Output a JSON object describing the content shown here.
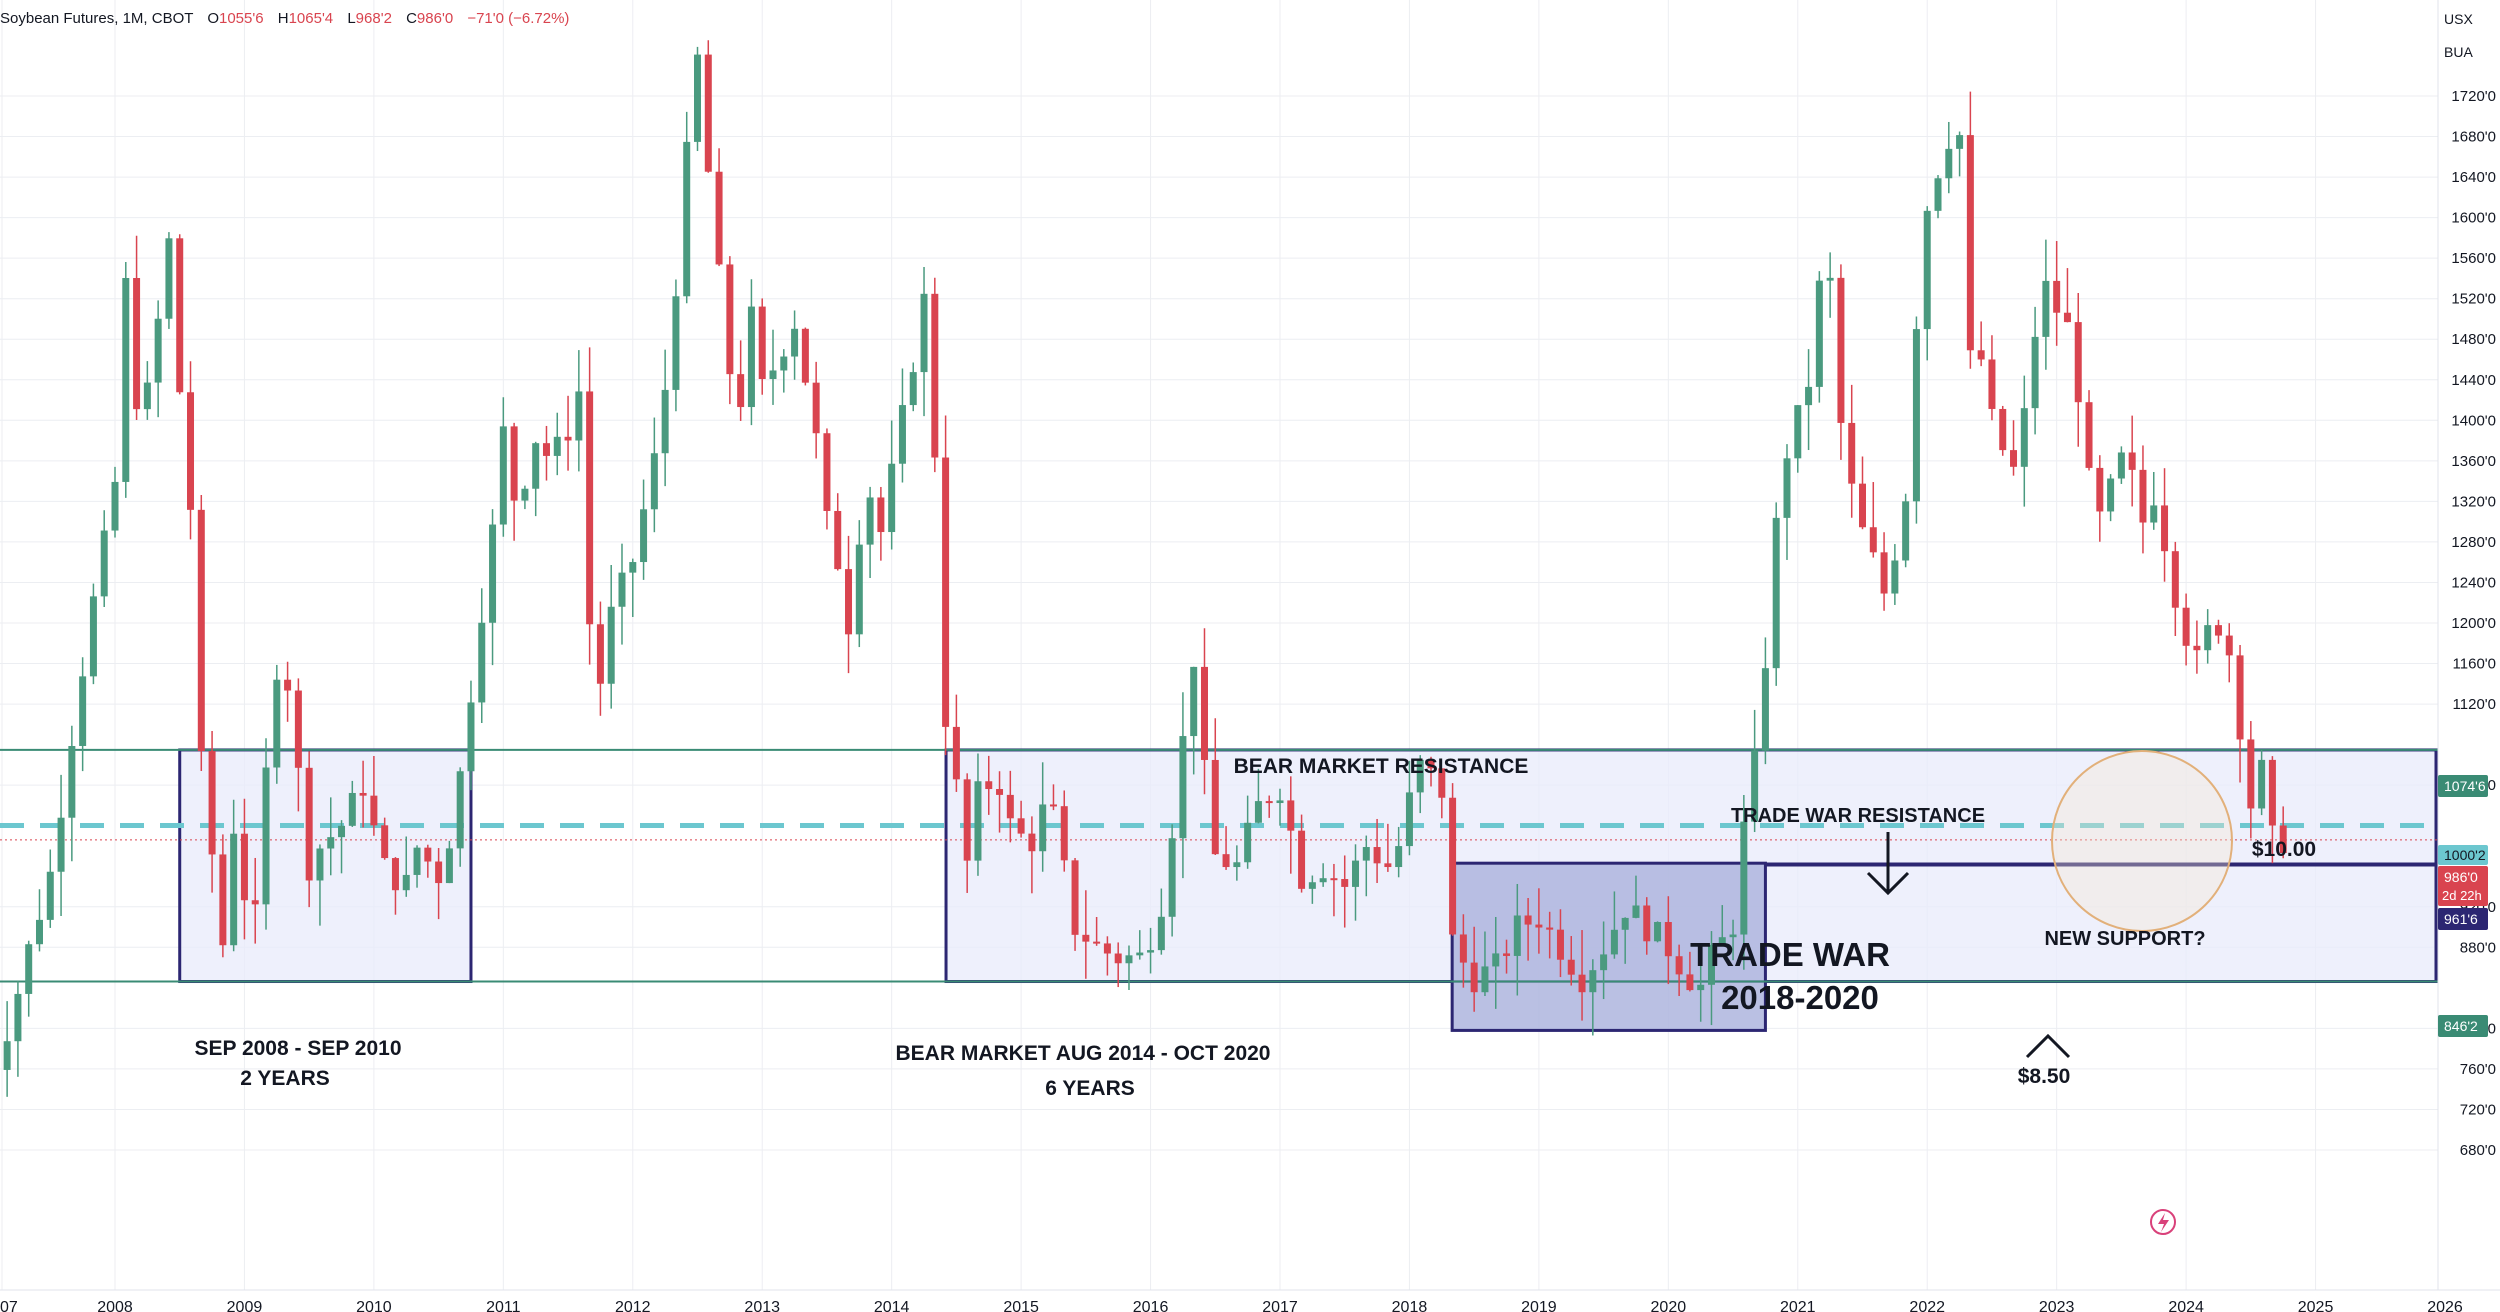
{
  "header": {
    "symbol": "Soybean Futures, 1M, CBOT",
    "o_label": "O",
    "o_value": "1055'6",
    "h_label": "H",
    "h_value": "1065'4",
    "l_label": "L",
    "l_value": "968'2",
    "c_label": "C",
    "c_value": "986'0",
    "change": "−71'0 (−6.72%)"
  },
  "scale": {
    "currency": "USX",
    "unit": "BUA"
  },
  "colors": {
    "up": "#4a9a7f",
    "down": "#d9444f",
    "grid": "#eceef2",
    "box_border": "#2c2672",
    "box_fill": "#e8ebfb",
    "box_fill_dark": "#aeb5de",
    "support_line": "#3a8b74",
    "dashed": "#6cc7cf",
    "circle": "#e2b07a",
    "price_label_green": "#3a8b74",
    "price_label_cyan": "#6cc7cf",
    "price_label_red": "#d9444f",
    "price_label_navy": "#2c2672"
  },
  "x_ticks": [
    "07",
    "2008",
    "2009",
    "2010",
    "2011",
    "2012",
    "2013",
    "2014",
    "2015",
    "2016",
    "2017",
    "2018",
    "2019",
    "2020",
    "2021",
    "2022",
    "2023",
    "2024",
    "2025",
    "2026"
  ],
  "y_ticks": [
    "1720'0",
    "1680'0",
    "1640'0",
    "1600'0",
    "1560'0",
    "1520'0",
    "1480'0",
    "1440'0",
    "1400'0",
    "1360'0",
    "1320'0",
    "1280'0",
    "1240'0",
    "1200'0",
    "1160'0",
    "1120'0",
    "1040'0",
    "920'0",
    "880'0",
    "800'0",
    "760'0",
    "720'0",
    "680'0"
  ],
  "price_labels": {
    "resistance": "1074'6",
    "ten": "1000'2",
    "last": "986'0",
    "countdown": "2d 22h",
    "support": "961'6",
    "bottom": "846'2"
  },
  "annotations": {
    "bear_resistance": "BEAR MARKET RESISTANCE",
    "sep2008": "SEP 2008 - SEP 2010",
    "two_years": "2 YEARS",
    "bear_market": "BEAR MARKET AUG 2014 - OCT 2020",
    "six_years": "6 YEARS",
    "trade_war_resistance": "TRADE WAR RESISTANCE",
    "trade_war": "TRADE WAR",
    "trade_war_years": "2018-2020",
    "ten_dollars": "$10.00",
    "new_support": "NEW SUPPORT?",
    "eight_fifty": "$8.50"
  },
  "chart_data": {
    "type": "candlestick",
    "title": "Soybean Futures, 1M, CBOT",
    "ylabel": "USX",
    "ylim": [
      660,
      1740
    ],
    "xlim": [
      2007.0,
      2026.8
    ],
    "levels": {
      "resistance": 1074.75,
      "ten_dollars": 1000.25,
      "new_support": 961.75,
      "bottom": 846.25,
      "last": 986.0
    },
    "boxes": [
      {
        "label": "SEP 2008 - SEP 2010",
        "x0": 2008.5,
        "x1": 2010.75,
        "y0": 846.25,
        "y1": 1074.75
      },
      {
        "label": "BEAR MARKET AUG 2014 - OCT 2020",
        "x0": 2014.42,
        "x1": 2026.1,
        "y0": 846.25,
        "y1": 1074.75
      },
      {
        "label": "TRADE WAR 2018-2020",
        "x0": 2018.33,
        "x1": 2020.75,
        "y0": 798,
        "y1": 963
      }
    ],
    "anchors": [
      [
        2007.0,
        780,
        "d"
      ],
      [
        2007.15,
        760,
        "d"
      ],
      [
        2007.3,
        820,
        "d"
      ],
      [
        2007.42,
        880,
        "d"
      ],
      [
        2007.58,
        950,
        "d"
      ],
      [
        2007.75,
        1090,
        "d"
      ],
      [
        2007.9,
        1210,
        "d"
      ],
      [
        2008.08,
        1330,
        "d"
      ],
      [
        2008.17,
        1540,
        "d"
      ],
      [
        2008.28,
        1380,
        "d"
      ],
      [
        2008.42,
        1500,
        "d"
      ],
      [
        2008.5,
        1575,
        "d"
      ],
      [
        2008.6,
        1400,
        "d"
      ],
      [
        2008.67,
        1310,
        "d"
      ],
      [
        2008.75,
        1060,
        "d"
      ],
      [
        2008.92,
        880,
        "d"
      ],
      [
        2009.0,
        1000,
        "d"
      ],
      [
        2009.15,
        880,
        "d"
      ],
      [
        2009.25,
        1050,
        "d"
      ],
      [
        2009.35,
        1180,
        "d"
      ],
      [
        2009.42,
        1140,
        "d"
      ],
      [
        2009.58,
        960,
        "d"
      ],
      [
        2009.67,
        980,
        "d"
      ],
      [
        2009.83,
        1000,
        "d"
      ],
      [
        2010.0,
        1040,
        "d"
      ],
      [
        2010.15,
        960,
        "d"
      ],
      [
        2010.33,
        940,
        "d"
      ],
      [
        2010.42,
        980,
        "d"
      ],
      [
        2010.58,
        950,
        "d"
      ],
      [
        2010.67,
        990,
        "d"
      ],
      [
        2010.75,
        1050,
        "d"
      ],
      [
        2010.9,
        1200,
        "d"
      ],
      [
        2011.0,
        1290,
        "d"
      ],
      [
        2011.08,
        1390,
        "d"
      ],
      [
        2011.2,
        1300,
        "d"
      ],
      [
        2011.3,
        1390,
        "d"
      ],
      [
        2011.45,
        1360,
        "d"
      ],
      [
        2011.58,
        1390,
        "d"
      ],
      [
        2011.67,
        1430,
        "d"
      ],
      [
        2011.75,
        1200,
        "d"
      ],
      [
        2011.83,
        1140,
        "d"
      ],
      [
        2011.92,
        1210,
        "d"
      ],
      [
        2012.08,
        1260,
        "d"
      ],
      [
        2012.2,
        1330,
        "d"
      ],
      [
        2012.3,
        1390,
        "d"
      ],
      [
        2012.42,
        1540,
        "d"
      ],
      [
        2012.5,
        1660,
        "d"
      ],
      [
        2012.58,
        1760,
        "d"
      ],
      [
        2012.67,
        1640,
        "d"
      ],
      [
        2012.75,
        1540,
        "d"
      ],
      [
        2012.83,
        1450,
        "d"
      ],
      [
        2012.92,
        1420,
        "d"
      ],
      [
        2013.0,
        1500,
        "d"
      ],
      [
        2013.08,
        1430,
        "d"
      ],
      [
        2013.2,
        1460,
        "d"
      ],
      [
        2013.33,
        1500,
        "d"
      ],
      [
        2013.42,
        1440,
        "d"
      ],
      [
        2013.5,
        1380,
        "d"
      ],
      [
        2013.58,
        1300,
        "d"
      ],
      [
        2013.67,
        1260,
        "d"
      ],
      [
        2013.75,
        1200,
        "d"
      ],
      [
        2013.83,
        1290,
        "d"
      ],
      [
        2013.92,
        1330,
        "d"
      ],
      [
        2014.0,
        1290,
        "d"
      ],
      [
        2014.15,
        1390,
        "d"
      ],
      [
        2014.25,
        1460,
        "d"
      ],
      [
        2014.33,
        1520,
        "d"
      ],
      [
        2014.4,
        1480,
        "d"
      ],
      [
        2014.45,
        1150,
        "d"
      ],
      [
        2014.58,
        1040,
        "d"
      ],
      [
        2014.67,
        960,
        "d"
      ],
      [
        2014.75,
        1030,
        "d"
      ],
      [
        2014.9,
        1050,
        "d"
      ],
      [
        2015.0,
        1000,
        "d"
      ],
      [
        2015.15,
        980,
        "d"
      ],
      [
        2015.3,
        1030,
        "d"
      ],
      [
        2015.5,
        900,
        "d"
      ],
      [
        2015.67,
        880,
        "d"
      ],
      [
        2015.83,
        870,
        "d"
      ],
      [
        2016.0,
        870,
        "d"
      ],
      [
        2016.15,
        910,
        "d"
      ],
      [
        2016.25,
        1000,
        "d"
      ],
      [
        2016.42,
        1170,
        "d"
      ],
      [
        2016.5,
        1050,
        "d"
      ],
      [
        2016.58,
        970,
        "d"
      ],
      [
        2016.75,
        960,
        "d"
      ],
      [
        2016.92,
        1020,
        "d"
      ],
      [
        2017.08,
        1040,
        "d"
      ],
      [
        2017.25,
        950,
        "d"
      ],
      [
        2017.42,
        960,
        "d"
      ],
      [
        2017.58,
        940,
        "d"
      ],
      [
        2017.75,
        980,
        "d"
      ],
      [
        2017.92,
        960,
        "d"
      ],
      [
        2018.0,
        980,
        "d"
      ],
      [
        2018.15,
        1060,
        "d"
      ],
      [
        2018.33,
        1040,
        "d"
      ],
      [
        2018.42,
        880,
        "d"
      ],
      [
        2018.58,
        850,
        "d"
      ],
      [
        2018.75,
        860,
        "d"
      ],
      [
        2018.92,
        900,
        "d"
      ],
      [
        2019.08,
        910,
        "d"
      ],
      [
        2019.25,
        880,
        "d"
      ],
      [
        2019.42,
        850,
        "d"
      ],
      [
        2019.58,
        880,
        "d"
      ],
      [
        2019.75,
        920,
        "d"
      ],
      [
        2019.92,
        900,
        "d"
      ],
      [
        2020.08,
        880,
        "d"
      ],
      [
        2020.25,
        850,
        "d"
      ],
      [
        2020.33,
        840,
        "d"
      ],
      [
        2020.42,
        870,
        "d"
      ],
      [
        2020.58,
        900,
        "d"
      ],
      [
        2020.67,
        1000,
        "d"
      ],
      [
        2020.75,
        1060,
        "d"
      ],
      [
        2020.83,
        1160,
        "d"
      ],
      [
        2020.92,
        1300,
        "d"
      ],
      [
        2021.0,
        1370,
        "d"
      ],
      [
        2021.08,
        1400,
        "d"
      ],
      [
        2021.17,
        1440,
        "d"
      ],
      [
        2021.25,
        1530,
        "d"
      ],
      [
        2021.33,
        1540,
        "d"
      ],
      [
        2021.42,
        1390,
        "d"
      ],
      [
        2021.5,
        1330,
        "d"
      ],
      [
        2021.58,
        1290,
        "d"
      ],
      [
        2021.67,
        1260,
        "d"
      ],
      [
        2021.75,
        1230,
        "d"
      ],
      [
        2021.83,
        1270,
        "d"
      ],
      [
        2021.92,
        1330,
        "d"
      ],
      [
        2022.0,
        1500,
        "d"
      ],
      [
        2022.08,
        1610,
        "d"
      ],
      [
        2022.17,
        1650,
        "d"
      ],
      [
        2022.25,
        1680,
        "d"
      ],
      [
        2022.33,
        1690,
        "d"
      ],
      [
        2022.42,
        1450,
        "d"
      ],
      [
        2022.5,
        1460,
        "d"
      ],
      [
        2022.58,
        1400,
        "d"
      ],
      [
        2022.67,
        1370,
        "d"
      ],
      [
        2022.75,
        1350,
        "d"
      ],
      [
        2022.83,
        1400,
        "d"
      ],
      [
        2022.92,
        1490,
        "d"
      ],
      [
        2023.0,
        1530,
        "d"
      ],
      [
        2023.08,
        1510,
        "d"
      ],
      [
        2023.17,
        1490,
        "d"
      ],
      [
        2023.25,
        1430,
        "d"
      ],
      [
        2023.33,
        1340,
        "d"
      ],
      [
        2023.42,
        1300,
        "d"
      ],
      [
        2023.5,
        1330,
        "d"
      ],
      [
        2023.58,
        1360,
        "d"
      ],
      [
        2023.67,
        1340,
        "d"
      ],
      [
        2023.75,
        1300,
        "d"
      ],
      [
        2023.83,
        1330,
        "d"
      ],
      [
        2023.92,
        1280,
        "d"
      ],
      [
        2024.0,
        1230,
        "d"
      ],
      [
        2024.08,
        1190,
        "d"
      ],
      [
        2024.17,
        1160,
        "d"
      ],
      [
        2024.25,
        1190,
        "d"
      ],
      [
        2024.33,
        1200,
        "d"
      ],
      [
        2024.42,
        1170,
        "d"
      ],
      [
        2024.5,
        1100,
        "d"
      ],
      [
        2024.58,
        1020,
        "d"
      ],
      [
        2024.67,
        1055,
        "d"
      ],
      [
        2024.75,
        986,
        "d"
      ]
    ]
  }
}
